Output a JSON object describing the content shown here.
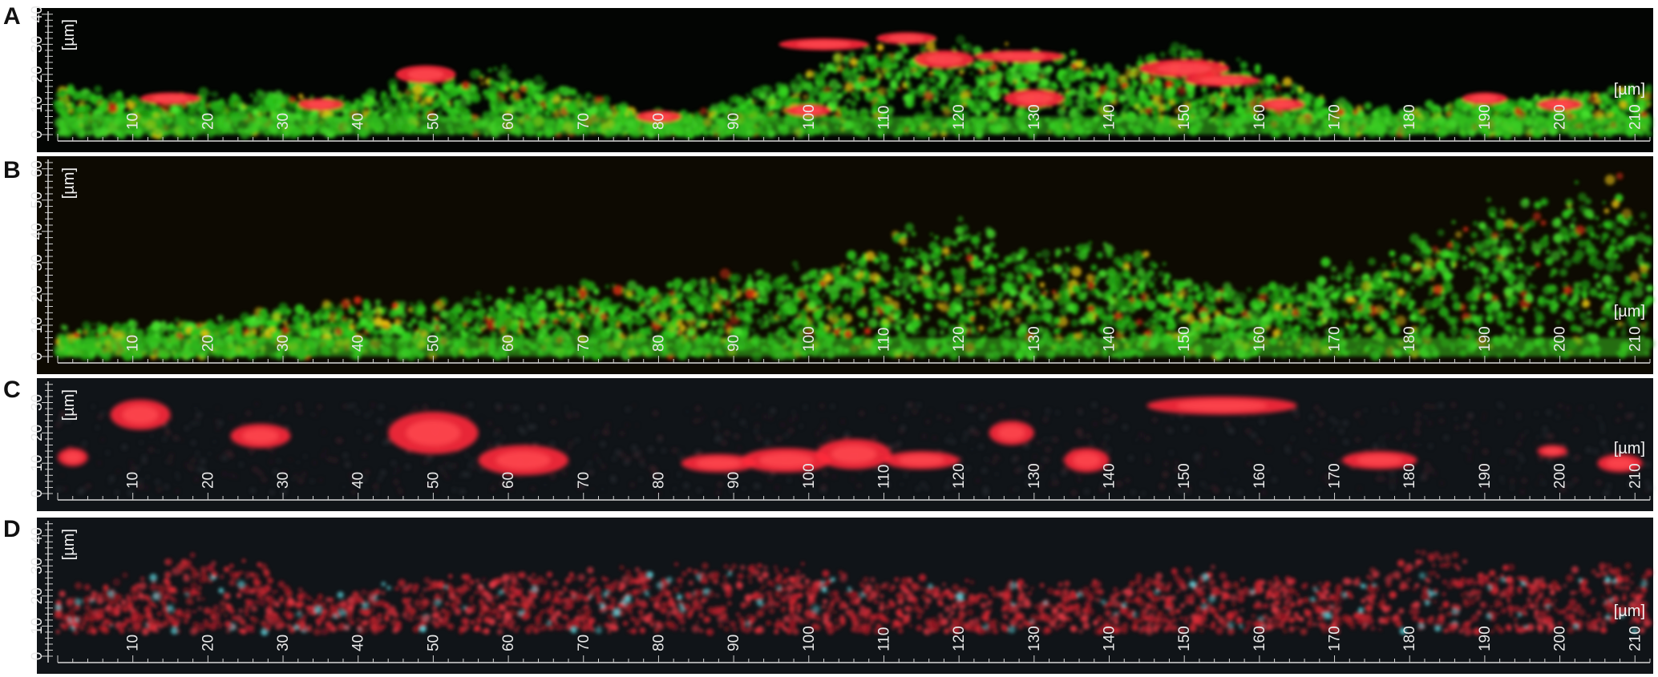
{
  "unit_label": "[µm]",
  "x_axis": {
    "ticks": [
      10,
      20,
      30,
      40,
      50,
      60,
      70,
      80,
      90,
      100,
      110,
      120,
      130,
      140,
      150,
      160,
      170,
      180,
      190,
      200,
      210
    ],
    "max": 212
  },
  "panels": [
    {
      "letter": "A",
      "palette": "green-red",
      "y_ticks": [
        0,
        10,
        20,
        30,
        40
      ],
      "y_max": 41,
      "profile": [
        [
          0,
          17
        ],
        [
          10,
          13
        ],
        [
          20,
          14
        ],
        [
          30,
          14
        ],
        [
          40,
          12
        ],
        [
          45,
          18
        ],
        [
          50,
          20
        ],
        [
          60,
          22
        ],
        [
          70,
          15
        ],
        [
          78,
          7
        ],
        [
          85,
          8
        ],
        [
          90,
          13
        ],
        [
          95,
          17
        ],
        [
          100,
          22
        ],
        [
          105,
          30
        ],
        [
          110,
          32
        ],
        [
          120,
          31
        ],
        [
          130,
          28
        ],
        [
          140,
          24
        ],
        [
          150,
          32
        ],
        [
          160,
          22
        ],
        [
          170,
          11
        ],
        [
          180,
          9
        ],
        [
          190,
          12
        ],
        [
          200,
          14
        ],
        [
          212,
          16
        ]
      ],
      "red_blobs": [
        [
          49,
          20,
          4,
          3
        ],
        [
          102,
          30,
          6,
          2
        ],
        [
          113,
          32,
          4,
          2
        ],
        [
          118,
          25,
          4,
          3
        ],
        [
          128,
          26,
          6,
          2
        ],
        [
          150,
          22,
          6,
          3
        ],
        [
          155,
          18,
          5,
          2
        ],
        [
          130,
          12,
          4,
          3
        ],
        [
          190,
          12,
          3,
          2
        ],
        [
          200,
          10,
          3,
          2
        ],
        [
          15,
          12,
          4,
          2
        ],
        [
          35,
          10,
          3,
          2
        ],
        [
          80,
          6,
          3,
          2
        ],
        [
          100,
          8,
          3,
          2
        ],
        [
          163,
          10,
          3,
          2
        ]
      ]
    },
    {
      "letter": "B",
      "palette": "green-red",
      "y_ticks": [
        0,
        10,
        20,
        30,
        40,
        50,
        60
      ],
      "y_max": 63,
      "profile": [
        [
          0,
          10
        ],
        [
          10,
          11
        ],
        [
          20,
          13
        ],
        [
          30,
          16
        ],
        [
          40,
          18
        ],
        [
          50,
          18
        ],
        [
          60,
          21
        ],
        [
          70,
          24
        ],
        [
          80,
          23
        ],
        [
          90,
          27
        ],
        [
          100,
          30
        ],
        [
          110,
          38
        ],
        [
          115,
          42
        ],
        [
          120,
          44
        ],
        [
          125,
          38
        ],
        [
          130,
          35
        ],
        [
          140,
          36
        ],
        [
          145,
          33
        ],
        [
          150,
          25
        ],
        [
          160,
          22
        ],
        [
          170,
          30
        ],
        [
          180,
          35
        ],
        [
          190,
          52
        ],
        [
          200,
          58
        ],
        [
          212,
          55
        ]
      ],
      "red_blobs": []
    },
    {
      "letter": "C",
      "palette": "red",
      "y_ticks": [
        0,
        10,
        20,
        30
      ],
      "y_max": 37,
      "profile": [],
      "red_blobs": [
        [
          11,
          26,
          4,
          5
        ],
        [
          27,
          19,
          4,
          4
        ],
        [
          50,
          20,
          6,
          7
        ],
        [
          62,
          11,
          6,
          5
        ],
        [
          88,
          10,
          5,
          3
        ],
        [
          97,
          11,
          6,
          4
        ],
        [
          106,
          13,
          5,
          5
        ],
        [
          115,
          11,
          5,
          3
        ],
        [
          127,
          20,
          3,
          4
        ],
        [
          137,
          11,
          3,
          4
        ],
        [
          155,
          29,
          10,
          3
        ],
        [
          176,
          11,
          5,
          3
        ],
        [
          199,
          14,
          2,
          2
        ],
        [
          208,
          10,
          3,
          3
        ],
        [
          2,
          12,
          2,
          3
        ]
      ]
    },
    {
      "letter": "D",
      "palette": "red-diffuse",
      "y_ticks": [
        0,
        10,
        20,
        30,
        40
      ],
      "y_max": 45,
      "profile": [
        [
          0,
          22
        ],
        [
          10,
          27
        ],
        [
          20,
          35
        ],
        [
          28,
          30
        ],
        [
          35,
          20
        ],
        [
          45,
          25
        ],
        [
          55,
          30
        ],
        [
          70,
          28
        ],
        [
          80,
          30
        ],
        [
          90,
          33
        ],
        [
          100,
          30
        ],
        [
          110,
          28
        ],
        [
          120,
          25
        ],
        [
          130,
          26
        ],
        [
          140,
          25
        ],
        [
          150,
          30
        ],
        [
          160,
          28
        ],
        [
          170,
          25
        ],
        [
          180,
          34
        ],
        [
          185,
          38
        ],
        [
          190,
          30
        ],
        [
          200,
          28
        ],
        [
          205,
          32
        ],
        [
          212,
          28
        ]
      ],
      "red_blobs": []
    }
  ]
}
